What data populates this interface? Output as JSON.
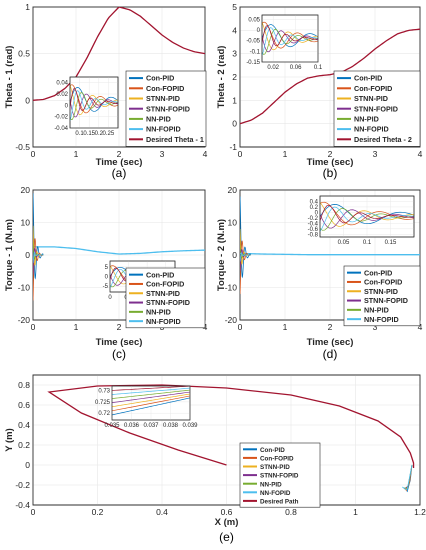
{
  "colors": {
    "con_pid": "#0072BD",
    "con_fopid": "#D95319",
    "stnn_pid": "#EDB120",
    "stnn_fopid": "#7E2F8E",
    "nn_pid": "#77AC30",
    "nn_fopid": "#4DBEEE",
    "desired": "#A2142F"
  },
  "chart_data": [
    {
      "id": "a",
      "type": "line",
      "caption": "(a)",
      "xlabel": "Time (sec)",
      "ylabel": "Theta - 1  (rad)",
      "xlim": [
        0,
        4
      ],
      "ylim": [
        -0.5,
        1
      ],
      "xticks": [
        0,
        1,
        2,
        3,
        4
      ],
      "yticks": [
        -0.5,
        0,
        0.5,
        1
      ],
      "yticklabels": [
        "-0.5",
        "0",
        "0.5",
        "1"
      ],
      "grid": true,
      "legend_position": "lower-right",
      "legend": [
        "Con-PID",
        "Con-FOPID",
        "STNN-PID",
        "STNN-FOPID",
        "NN-PID",
        "NN-FOPID",
        "Desired Theta - 1"
      ],
      "series": [
        {
          "name": "Desired Theta - 1",
          "x": [
            0,
            0.25,
            0.5,
            0.75,
            1.0,
            1.25,
            1.5,
            1.75,
            2.0,
            2.25,
            2.5,
            2.75,
            3.0,
            3.25,
            3.5,
            3.75,
            4.0
          ],
          "y": [
            0,
            0.01,
            0.05,
            0.13,
            0.25,
            0.45,
            0.68,
            0.88,
            1.0,
            0.97,
            0.9,
            0.8,
            0.7,
            0.62,
            0.56,
            0.52,
            0.5
          ]
        }
      ],
      "inset": {
        "xlim": [
          0.05,
          0.3
        ],
        "ylim": [
          -0.04,
          0.05
        ],
        "xticks": [
          0.1,
          0.15,
          0.2,
          0.25
        ],
        "xticklabels": [
          "0.1",
          "0.15",
          "0.2",
          "0.25"
        ],
        "yticks": [
          -0.04,
          -0.02,
          0,
          0.02,
          0.04
        ],
        "yticklabels": [
          "-0.04",
          "-0.02",
          "0",
          "0.02",
          "0.04"
        ]
      }
    },
    {
      "id": "b",
      "type": "line",
      "caption": "(b)",
      "xlabel": "Time (sec)",
      "ylabel": "Theta - 2  (rad)",
      "xlim": [
        0,
        4
      ],
      "ylim": [
        -1,
        5
      ],
      "xticks": [
        0,
        1,
        2,
        3,
        4
      ],
      "yticks": [
        -1,
        0,
        1,
        2,
        3,
        4,
        5
      ],
      "yticklabels": [
        "-1",
        "0",
        "1",
        "2",
        "3",
        "4",
        "5"
      ],
      "grid": true,
      "legend_position": "lower-right",
      "legend": [
        "Con-PID",
        "Con-FOPID",
        "STNN-PID",
        "STNN-FOPID",
        "NN-PID",
        "NN-FOPID",
        "Desired Theta - 2"
      ],
      "series": [
        {
          "name": "Desired Theta - 2",
          "x": [
            0,
            0.25,
            0.5,
            0.75,
            1.0,
            1.25,
            1.5,
            1.75,
            2.0,
            2.25,
            2.5,
            2.75,
            3.0,
            3.25,
            3.5,
            3.75,
            4.0
          ],
          "y": [
            0,
            0.15,
            0.45,
            0.9,
            1.35,
            1.7,
            1.95,
            2.05,
            2.1,
            2.2,
            2.45,
            2.8,
            3.2,
            3.55,
            3.85,
            4.0,
            4.05
          ]
        }
      ],
      "inset": {
        "xlim": [
          0.0,
          0.1
        ],
        "ylim": [
          -0.15,
          0.07
        ],
        "xticks": [
          0.02,
          0.06,
          0.1
        ],
        "xticklabels": [
          "0.02",
          "0.06",
          "0.1"
        ],
        "yticks": [
          -0.15,
          -0.1,
          -0.05,
          0,
          0.05
        ],
        "yticklabels": [
          "-0.15",
          "-0.1",
          "-0.05",
          "0",
          "0.05"
        ]
      }
    },
    {
      "id": "c",
      "type": "line",
      "caption": "(c)",
      "xlabel": "Time (sec)",
      "ylabel": "Torque - 1  (N.m)",
      "xlim": [
        0,
        4
      ],
      "ylim": [
        -20,
        20
      ],
      "xticks": [
        0,
        1,
        2,
        3,
        4
      ],
      "yticks": [
        -20,
        -10,
        0,
        10,
        20
      ],
      "yticklabels": [
        "-20",
        "-10",
        "0",
        "10",
        "20"
      ],
      "grid": true,
      "legend_position": "lower-right",
      "legend": [
        "Con-PID",
        "Con-FOPID",
        "STNN-PID",
        "STNN-FOPID",
        "NN-PID",
        "NN-FOPID"
      ],
      "series": [
        {
          "name": "NN-FOPID",
          "x": [
            0,
            0.5,
            1.0,
            1.5,
            2.0,
            2.5,
            3.0,
            3.5,
            4.0
          ],
          "y": [
            2.5,
            2.5,
            2.0,
            1.0,
            0.3,
            0.5,
            1.0,
            1.3,
            1.5
          ]
        }
      ],
      "inset": {
        "xlim": [
          0,
          0.35
        ],
        "ylim": [
          -8,
          8
        ],
        "xticks": [
          0,
          0.1,
          0.2,
          0.3
        ],
        "xticklabels": [
          "0",
          "0.1",
          "0.2",
          "0.3"
        ],
        "yticks": [
          -5,
          0,
          5
        ],
        "yticklabels": [
          "-5",
          "0",
          "5"
        ]
      }
    },
    {
      "id": "d",
      "type": "line",
      "caption": "(d)",
      "xlabel": "Time (sec)",
      "ylabel": "Torque - 2  (N.m)",
      "xlim": [
        0,
        4
      ],
      "ylim": [
        -20,
        20
      ],
      "xticks": [
        0,
        1,
        2,
        3,
        4
      ],
      "yticks": [
        -20,
        -10,
        0,
        10,
        20
      ],
      "yticklabels": [
        "-20",
        "-10",
        "0",
        "10",
        "20"
      ],
      "grid": true,
      "legend_position": "lower-right",
      "legend": [
        "Con-PID",
        "Con-FOPID",
        "STNN-PID",
        "STNN-FOPID",
        "NN-PID",
        "NN-FOPID"
      ],
      "series": [
        {
          "name": "NN-FOPID",
          "x": [
            0,
            0.5,
            1.0,
            1.5,
            2.0,
            2.5,
            3.0,
            3.5,
            4.0
          ],
          "y": [
            0.5,
            0.3,
            0.2,
            0.1,
            0.1,
            0.1,
            0.1,
            0.1,
            0.1
          ]
        }
      ],
      "inset": {
        "xlim": [
          0.0,
          0.2
        ],
        "ylim": [
          -0.9,
          0.6
        ],
        "xticks": [
          0.05,
          0.1,
          0.15
        ],
        "xticklabels": [
          "0.05",
          "0.1",
          "0.15"
        ],
        "yticks": [
          -0.8,
          -0.6,
          -0.4,
          -0.2,
          0,
          0.2,
          0.4
        ],
        "yticklabels": [
          "-0.8",
          "-0.6",
          "-0.4",
          "-0.2",
          "0",
          "0.2",
          "0.4"
        ]
      }
    },
    {
      "id": "e",
      "type": "line",
      "caption": "(e)",
      "xlabel": "X (m)",
      "ylabel": "Y (m)",
      "xlim": [
        0,
        1.2
      ],
      "ylim": [
        -0.4,
        0.9
      ],
      "xticks": [
        0,
        0.2,
        0.4,
        0.6,
        0.8,
        1,
        1.2
      ],
      "xticklabels": [
        "0",
        "0.2",
        "0.4",
        "0.6",
        "0.8",
        "1",
        "1.2"
      ],
      "yticks": [
        -0.4,
        -0.2,
        0,
        0.2,
        0.4,
        0.6,
        0.8
      ],
      "yticklabels": [
        "-0.4",
        "-0.2",
        "0",
        "0.2",
        "0.4",
        "0.6",
        "0.8"
      ],
      "grid": true,
      "legend_position": "lower-right",
      "legend": [
        "Con-PID",
        "Con-FOPID",
        "STNN-PID",
        "STNN-FOPID",
        "NN-PID",
        "NN-FOPID",
        "Desired Path"
      ],
      "series": [
        {
          "name": "Desired Path",
          "x": [
            0.6,
            0.45,
            0.3,
            0.15,
            0.05,
            0.2,
            0.4,
            0.6,
            0.8,
            0.95,
            1.07,
            1.14,
            1.17,
            1.18,
            1.18
          ],
          "y": [
            0.0,
            0.15,
            0.32,
            0.52,
            0.73,
            0.79,
            0.8,
            0.77,
            0.7,
            0.59,
            0.44,
            0.28,
            0.12,
            0.02,
            -0.03
          ]
        }
      ],
      "inset": {
        "xlim": [
          0.035,
          0.039
        ],
        "ylim": [
          0.717,
          0.732
        ],
        "xticks": [
          0.035,
          0.036,
          0.037,
          0.038,
          0.039
        ],
        "xticklabels": [
          "0.035",
          "0.036",
          "0.037",
          "0.038",
          "0.039"
        ],
        "yticks": [
          0.72,
          0.725,
          0.73
        ],
        "yticklabels": [
          "0.72",
          "0.725",
          "0.73"
        ]
      }
    }
  ]
}
